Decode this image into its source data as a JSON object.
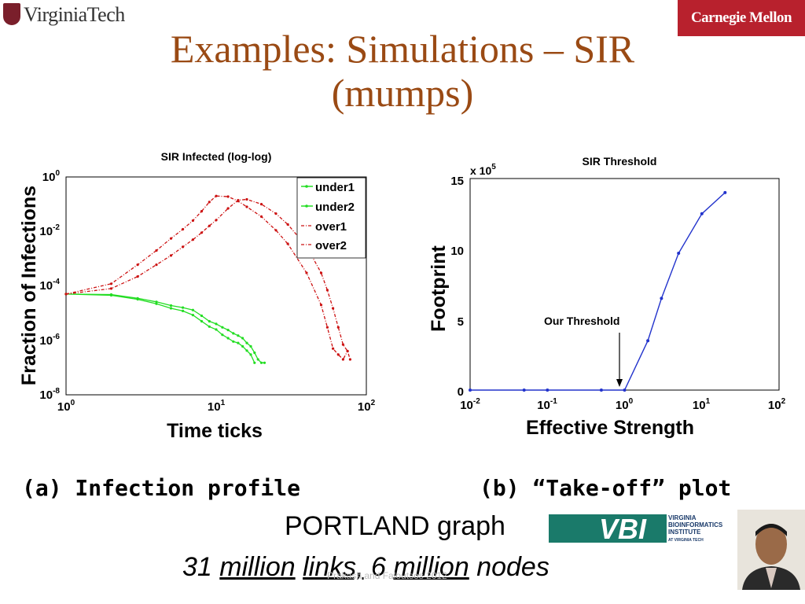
{
  "header": {
    "left_logo": "VirginiaTech",
    "right_logo": "Carnegie Mellon",
    "title_line1": "Examples: Simulations – SIR",
    "title_line2": "(mumps)"
  },
  "captions": {
    "a": "(a) Infection profile",
    "b": "(b) “Take-off” plot"
  },
  "graph": {
    "name": "PORTLAND graph",
    "stats_num1": "31",
    "stats_word1": "million",
    "stats_word2": "links,",
    "stats_num2": "6",
    "stats_word3": "million",
    "stats_word4": "nodes"
  },
  "footer": "Prakash and Faloutsos 2012",
  "vbi_logo": {
    "text": "VBI",
    "line1": "VIRGINIA",
    "line2": "BIOINFORMATICS",
    "line3": "INSTITUTE",
    "line4": "AT VIRGINIA TECH"
  },
  "colors": {
    "title": "#9a4a14",
    "green": "#22dd22",
    "red": "#cc1111",
    "blue": "#2233cc"
  },
  "chart_data": [
    {
      "type": "line",
      "title": "SIR Infected (log-log)",
      "xlabel": "Time ticks",
      "ylabel": "Fraction of Infections",
      "xscale": "log",
      "yscale": "log",
      "xlim": [
        1,
        100
      ],
      "ylim": [
        1e-08,
        1
      ],
      "xticks": [
        1,
        10,
        100
      ],
      "xtick_labels": [
        "10",
        "10",
        "10"
      ],
      "xtick_exps": [
        "0",
        "1",
        "2"
      ],
      "yticks": [
        1,
        0.01,
        0.0001,
        1e-06,
        1e-08
      ],
      "ytick_labels": [
        "10",
        "10",
        "10",
        "10",
        "10"
      ],
      "ytick_exps": [
        "0",
        "-2",
        "-4",
        "-6",
        "-8"
      ],
      "legend": "top-right",
      "series": [
        {
          "name": "under1",
          "color": "#22dd22",
          "style": "solid",
          "x": [
            1,
            2,
            3,
            4,
            5,
            6,
            7,
            8,
            9,
            10,
            11,
            12,
            13,
            14,
            15,
            16,
            17,
            18,
            19,
            20,
            21
          ],
          "y": [
            5e-05,
            4.8e-05,
            3.5e-05,
            2.6e-05,
            1.9e-05,
            1.6e-05,
            1.3e-05,
            8e-06,
            5e-06,
            4e-06,
            3e-06,
            2.4e-06,
            1.8e-06,
            1.5e-06,
            1.2e-06,
            8e-07,
            6e-07,
            3.5e-07,
            2e-07,
            1.5e-07,
            1.5e-07
          ]
        },
        {
          "name": "under2",
          "color": "#22dd22",
          "style": "solid",
          "x": [
            1,
            2,
            3,
            4,
            5,
            6,
            7,
            8,
            9,
            10,
            11,
            12,
            13,
            14,
            15,
            16,
            17,
            18
          ],
          "y": [
            5e-05,
            4.5e-05,
            3.2e-05,
            2.2e-05,
            1.5e-05,
            1.2e-05,
            8.5e-06,
            5e-06,
            3.2e-06,
            2.5e-06,
            1.6e-06,
            1.2e-06,
            9e-07,
            8e-07,
            6e-07,
            4.2e-07,
            3e-07,
            1.5e-07
          ]
        },
        {
          "name": "over1",
          "color": "#cc1111",
          "style": "dashdot",
          "x": [
            1,
            2,
            3,
            4,
            5,
            6,
            7,
            8,
            9,
            10,
            12,
            14,
            16,
            20,
            25,
            30,
            40,
            50,
            55,
            60,
            65,
            70,
            75
          ],
          "y": [
            5e-05,
            0.00012,
            0.0006,
            0.002,
            0.0055,
            0.012,
            0.025,
            0.055,
            0.12,
            0.2,
            0.19,
            0.13,
            0.08,
            0.035,
            0.011,
            0.0035,
            0.0003,
            2e-05,
            3e-06,
            5e-07,
            3e-07,
            2e-07,
            4e-07
          ]
        },
        {
          "name": "over2",
          "color": "#cc1111",
          "style": "dashdot",
          "x": [
            1,
            2,
            3,
            4,
            5,
            6,
            7,
            8,
            9,
            10,
            12,
            14,
            16,
            20,
            25,
            30,
            40,
            50,
            55,
            60,
            65,
            70,
            75,
            78
          ],
          "y": [
            5e-05,
            8e-05,
            0.00022,
            0.0006,
            0.0013,
            0.0027,
            0.005,
            0.009,
            0.016,
            0.026,
            0.07,
            0.14,
            0.15,
            0.1,
            0.045,
            0.018,
            0.0028,
            0.0003,
            7e-05,
            1.5e-05,
            3e-06,
            7e-07,
            4e-07,
            2e-07
          ]
        }
      ]
    },
    {
      "type": "line",
      "title": "SIR Threshold",
      "xlabel": "Effective Strength",
      "ylabel": "Footprint",
      "xscale": "log",
      "yscale": "linear",
      "xlim": [
        0.01,
        100
      ],
      "ylim": [
        0,
        1500000
      ],
      "y_multiplier": "x 10",
      "y_multiplier_exp": "5",
      "xticks": [
        0.01,
        0.1,
        1,
        10,
        100
      ],
      "xtick_labels": [
        "10",
        "10",
        "10",
        "10",
        "10"
      ],
      "xtick_exps": [
        "-2",
        "-1",
        "0",
        "1",
        "2"
      ],
      "yticks": [
        0,
        500000,
        1000000,
        1500000
      ],
      "ytick_labels": [
        "0",
        "5",
        "10",
        "15"
      ],
      "annotation": {
        "text": "Our Threshold",
        "x": 1,
        "y": 0
      },
      "series": [
        {
          "name": "",
          "color": "#2233cc",
          "x": [
            0.01,
            0.05,
            0.1,
            0.5,
            1,
            2,
            3,
            5,
            10,
            20
          ],
          "y": [
            0,
            0,
            0,
            0,
            0,
            350000,
            650000,
            970000,
            1250000,
            1400000
          ]
        }
      ]
    }
  ]
}
